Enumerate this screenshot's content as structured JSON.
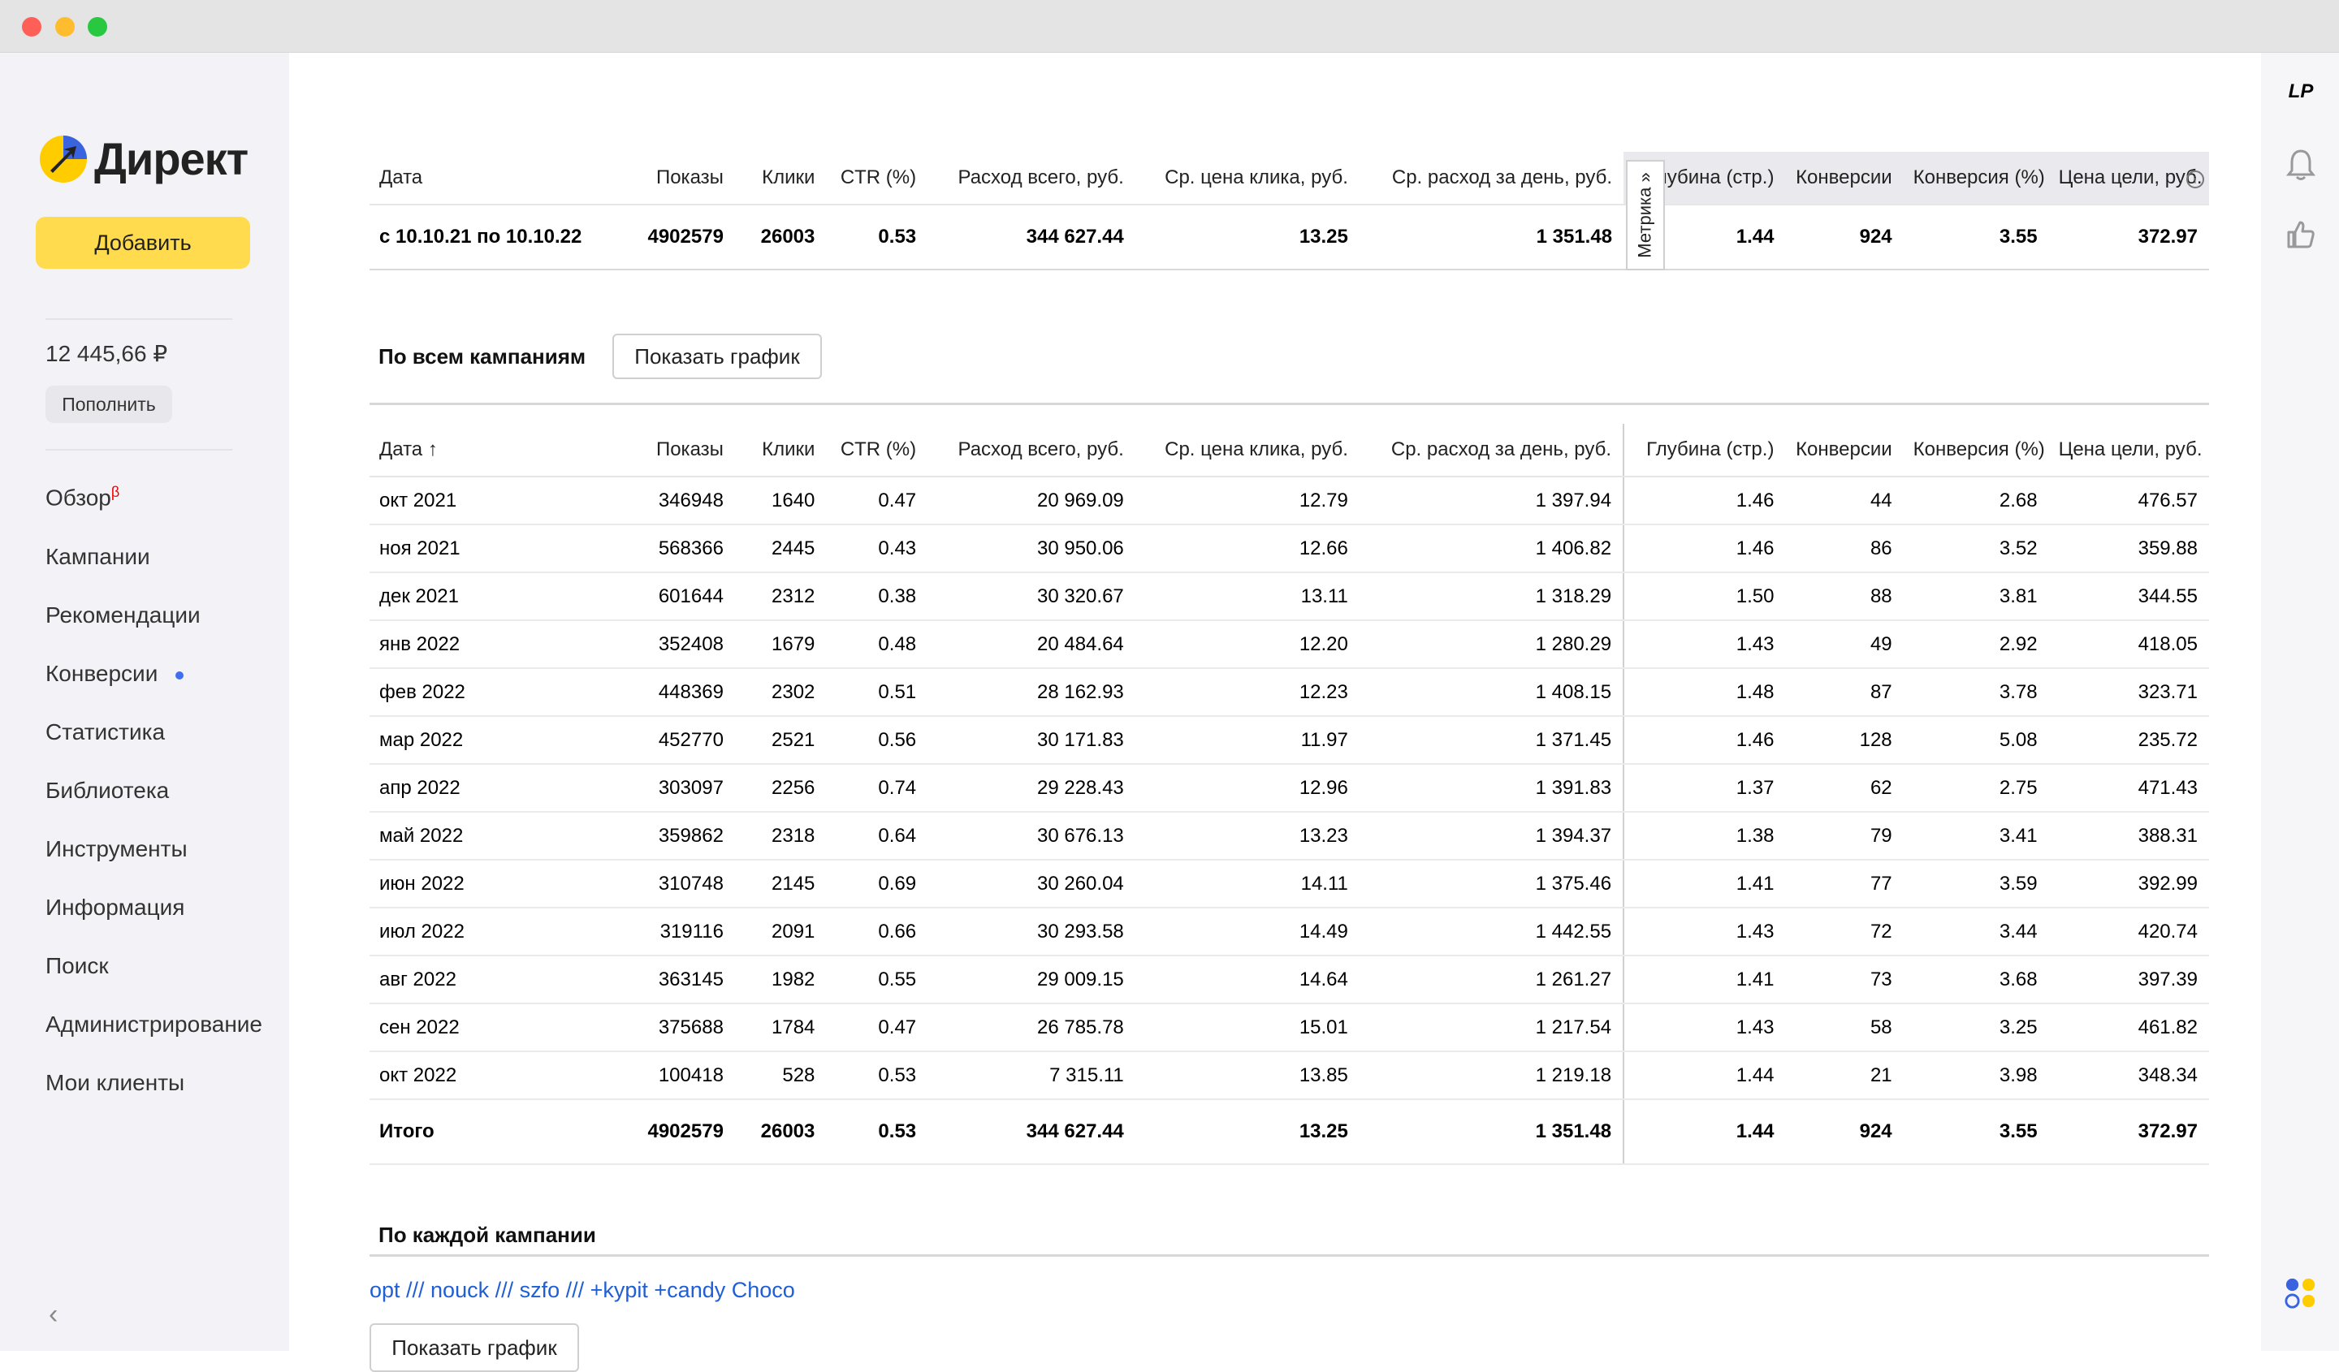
{
  "sidebar": {
    "logo_text": "Директ",
    "add_button": "Добавить",
    "balance": "12 445,66 ₽",
    "topup_button": "Пополнить",
    "nav": [
      {
        "label": "Обзор",
        "badge": "β"
      },
      {
        "label": "Кампании"
      },
      {
        "label": "Рекомендации"
      },
      {
        "label": "Конверсии",
        "dot": true
      },
      {
        "label": "Статистика"
      },
      {
        "label": "Библиотека"
      },
      {
        "label": "Инструменты"
      },
      {
        "label": "Информация"
      },
      {
        "label": "Поиск"
      },
      {
        "label": "Администрирование"
      },
      {
        "label": "Мои клиенты"
      }
    ],
    "collapse_icon": "chevron-left-icon"
  },
  "summary": {
    "headers": [
      "Дата",
      "Показы",
      "Клики",
      "CTR (%)",
      "Расход всего, руб.",
      "Ср. цена клика, руб.",
      "Ср. расход за день, руб.",
      "Глубина (стр.)",
      "Конверсии",
      "Конверсия (%)",
      "Цена цели, руб."
    ],
    "row": [
      "с 10.10.21 по 10.10.22",
      "4902579",
      "26003",
      "0.53",
      "344 627.44",
      "13.25",
      "1 351.48",
      "1.44",
      "924",
      "3.55",
      "372.97"
    ],
    "metrika_label": "Метрика »"
  },
  "all_campaigns": {
    "title": "По всем кампаниям",
    "show_chart_button": "Показать график",
    "headers": [
      "Дата ↑",
      "Показы",
      "Клики",
      "CTR (%)",
      "Расход всего, руб.",
      "Ср. цена клика, руб.",
      "Ср. расход за день, руб.",
      "Глубина (стр.)",
      "Конверсии",
      "Конверсия (%)",
      "Цена цели, руб."
    ],
    "rows": [
      [
        "окт 2021",
        "346948",
        "1640",
        "0.47",
        "20 969.09",
        "12.79",
        "1 397.94",
        "1.46",
        "44",
        "2.68",
        "476.57"
      ],
      [
        "ноя 2021",
        "568366",
        "2445",
        "0.43",
        "30 950.06",
        "12.66",
        "1 406.82",
        "1.46",
        "86",
        "3.52",
        "359.88"
      ],
      [
        "дек 2021",
        "601644",
        "2312",
        "0.38",
        "30 320.67",
        "13.11",
        "1 318.29",
        "1.50",
        "88",
        "3.81",
        "344.55"
      ],
      [
        "янв 2022",
        "352408",
        "1679",
        "0.48",
        "20 484.64",
        "12.20",
        "1 280.29",
        "1.43",
        "49",
        "2.92",
        "418.05"
      ],
      [
        "фев 2022",
        "448369",
        "2302",
        "0.51",
        "28 162.93",
        "12.23",
        "1 408.15",
        "1.48",
        "87",
        "3.78",
        "323.71"
      ],
      [
        "мар 2022",
        "452770",
        "2521",
        "0.56",
        "30 171.83",
        "11.97",
        "1 371.45",
        "1.46",
        "128",
        "5.08",
        "235.72"
      ],
      [
        "апр 2022",
        "303097",
        "2256",
        "0.74",
        "29 228.43",
        "12.96",
        "1 391.83",
        "1.37",
        "62",
        "2.75",
        "471.43"
      ],
      [
        "май 2022",
        "359862",
        "2318",
        "0.64",
        "30 676.13",
        "13.23",
        "1 394.37",
        "1.38",
        "79",
        "3.41",
        "388.31"
      ],
      [
        "июн 2022",
        "310748",
        "2145",
        "0.69",
        "30 260.04",
        "14.11",
        "1 375.46",
        "1.41",
        "77",
        "3.59",
        "392.99"
      ],
      [
        "июл 2022",
        "319116",
        "2091",
        "0.66",
        "30 293.58",
        "14.49",
        "1 442.55",
        "1.43",
        "72",
        "3.44",
        "420.74"
      ],
      [
        "авг 2022",
        "363145",
        "1982",
        "0.55",
        "29 009.15",
        "14.64",
        "1 261.27",
        "1.41",
        "73",
        "3.68",
        "397.39"
      ],
      [
        "сен 2022",
        "375688",
        "1784",
        "0.47",
        "26 785.78",
        "15.01",
        "1 217.54",
        "1.43",
        "58",
        "3.25",
        "461.82"
      ],
      [
        "окт 2022",
        "100418",
        "528",
        "0.53",
        "7 315.11",
        "13.85",
        "1 219.18",
        "1.44",
        "21",
        "3.98",
        "348.34"
      ]
    ],
    "total": [
      "Итого",
      "4902579",
      "26003",
      "0.53",
      "344 627.44",
      "13.25",
      "1 351.48",
      "1.44",
      "924",
      "3.55",
      "372.97"
    ]
  },
  "each_campaign": {
    "title": "По каждой кампании",
    "campaign_link": "opt /// nouck /// szfo /// +kypit +candy Choco",
    "show_chart_button": "Показать график"
  },
  "right_rail": {
    "icons": [
      "lp-logo-icon",
      "bell-icon",
      "thumbs-up-icon",
      "apps-icon"
    ],
    "lp_text": "LP"
  }
}
